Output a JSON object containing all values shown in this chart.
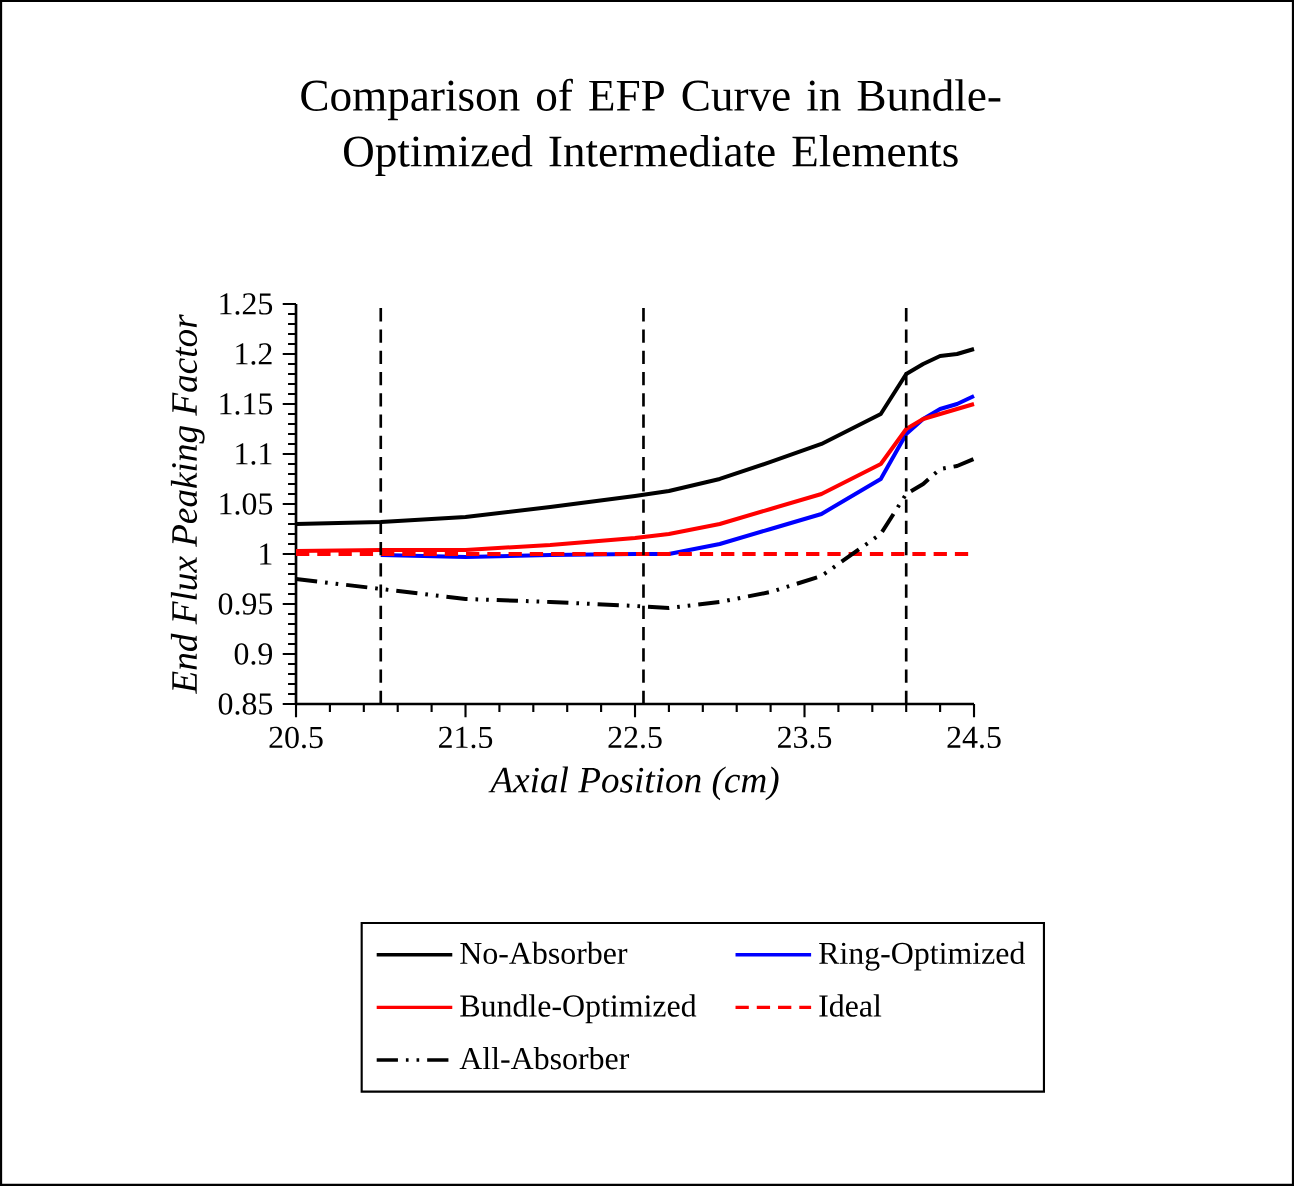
{
  "chart_data": {
    "type": "line",
    "title": "Comparison of EFP Curve in Bundle-Optimized Intermediate Elements",
    "xlabel": "Axial Position (cm)",
    "ylabel": "End Flux Peaking Factor",
    "xlim": [
      20.5,
      24.5
    ],
    "xticks": [
      20.5,
      21.5,
      22.5,
      23.5,
      24.5
    ],
    "ylim": [
      0.85,
      1.25
    ],
    "yticks": [
      0.85,
      0.9,
      0.95,
      1,
      1.05,
      1.1,
      1.15,
      1.2,
      1.25
    ],
    "grid": false,
    "legend": "bottom",
    "marker": "none",
    "x": [
      20.5,
      21.0,
      21.5,
      22.0,
      22.5,
      22.7,
      23.0,
      23.3,
      23.6,
      23.95,
      24.1,
      24.2,
      24.3,
      24.4,
      24.5
    ],
    "series": [
      {
        "name": "No-Absorber",
        "color": "#000000",
        "line_style": "solid",
        "values": [
          1.03,
          1.032,
          1.037,
          1.047,
          1.058,
          1.063,
          1.075,
          1.092,
          1.11,
          1.14,
          1.18,
          1.19,
          1.198,
          1.2,
          1.205
        ]
      },
      {
        "name": "Ring-Optimized",
        "color": "#0000ff",
        "line_style": "solid",
        "values": [
          null,
          0.999,
          0.997,
          0.999,
          1.0,
          1.0,
          1.01,
          1.025,
          1.04,
          1.075,
          1.12,
          1.135,
          1.145,
          1.15,
          1.158
        ]
      },
      {
        "name": "Bundle-Optimized",
        "color": "#ff0000",
        "line_style": "solid",
        "values": [
          1.003,
          1.004,
          1.004,
          1.009,
          1.016,
          1.02,
          1.03,
          1.045,
          1.06,
          1.09,
          1.125,
          1.135,
          1.14,
          1.145,
          1.15
        ]
      },
      {
        "name": "Ideal",
        "color": "#ff0000",
        "line_style": "dashed",
        "x": [
          20.5,
          24.5
        ],
        "values": [
          1,
          1
        ]
      },
      {
        "name": "All-Absorber",
        "color": "#000000",
        "line_style": "dashdotdotted",
        "values": [
          0.975,
          0.965,
          0.955,
          0.952,
          0.948,
          0.946,
          0.952,
          0.962,
          0.978,
          1.02,
          1.06,
          1.07,
          1.085,
          1.088,
          1.095
        ]
      }
    ],
    "ref_lines": [
      {
        "axis": "x",
        "value": 21.0,
        "color": "#000000",
        "line_style": "dashed"
      },
      {
        "axis": "x",
        "value": 22.55,
        "color": "#000000",
        "line_style": "dashed"
      },
      {
        "axis": "x",
        "value": 24.1,
        "color": "#000000",
        "line_style": "dashed"
      }
    ]
  }
}
